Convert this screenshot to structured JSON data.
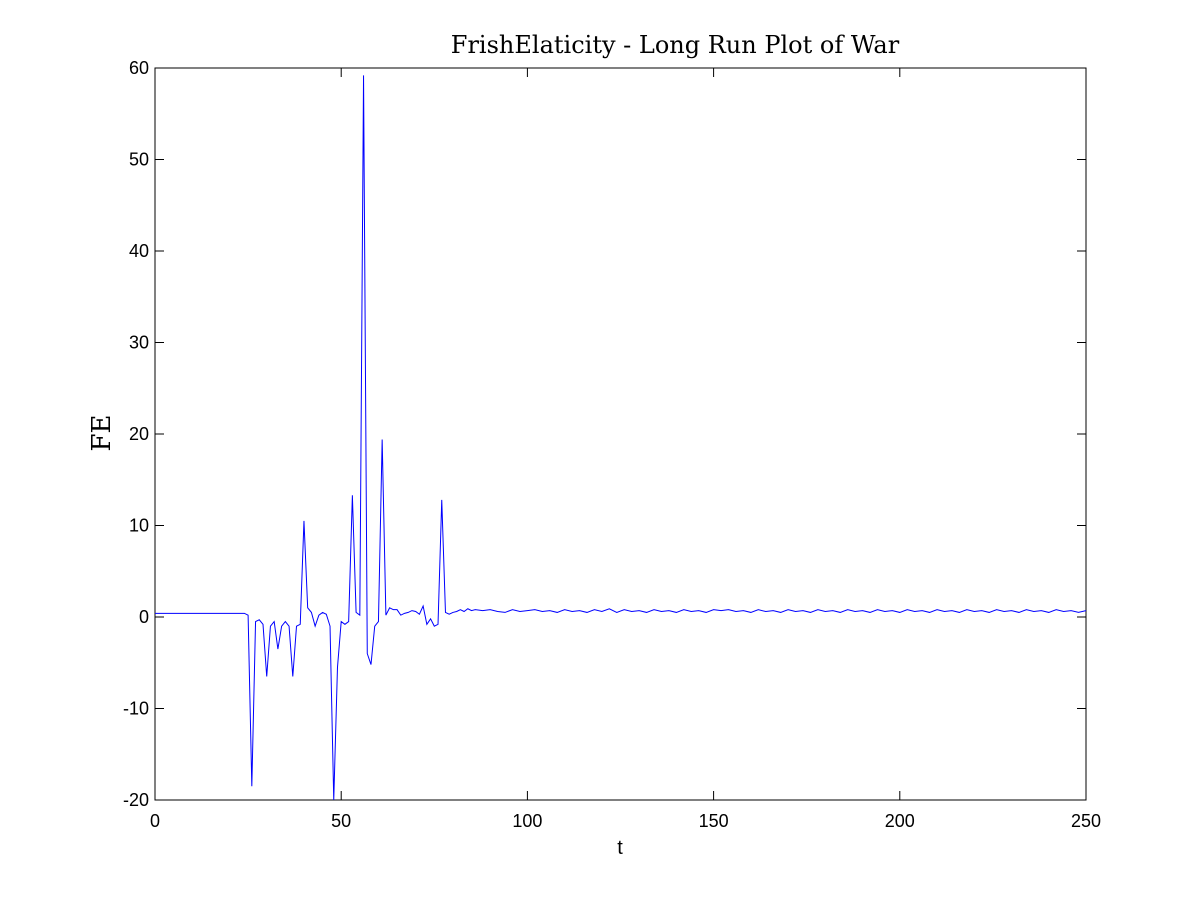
{
  "chart_data": {
    "type": "line",
    "title": "FrishElaticity - Long Run Plot of War",
    "xlabel": "t",
    "ylabel": "FE",
    "xlim": [
      0,
      250
    ],
    "ylim": [
      -20,
      60
    ],
    "xticks": [
      0,
      50,
      100,
      150,
      200,
      250
    ],
    "yticks": [
      -20,
      -10,
      0,
      10,
      20,
      30,
      40,
      50,
      60
    ],
    "grid": false,
    "series": [
      {
        "color": "#0000ff",
        "x": [
          0,
          24,
          25,
          26,
          27,
          28,
          29,
          30,
          31,
          32,
          33,
          34,
          35,
          36,
          37,
          38,
          39,
          40,
          41,
          42,
          43,
          44,
          45,
          46,
          47,
          48,
          49,
          50,
          51,
          52,
          53,
          54,
          55,
          56,
          57,
          58,
          59,
          60,
          61,
          62,
          63,
          64,
          65,
          66,
          67,
          68,
          69,
          70,
          71,
          72,
          73,
          74,
          75,
          76,
          77,
          78,
          79,
          80,
          81,
          82,
          83,
          84,
          85,
          86,
          88,
          90,
          92,
          94,
          96,
          98,
          100,
          102,
          104,
          106,
          108,
          110,
          112,
          114,
          116,
          118,
          120,
          122,
          124,
          126,
          128,
          130,
          132,
          134,
          136,
          138,
          140,
          142,
          144,
          146,
          148,
          150,
          152,
          154,
          156,
          158,
          160,
          162,
          164,
          166,
          168,
          170,
          172,
          174,
          176,
          178,
          180,
          182,
          184,
          186,
          188,
          190,
          192,
          194,
          196,
          198,
          200,
          202,
          204,
          206,
          208,
          210,
          212,
          214,
          216,
          218,
          220,
          222,
          224,
          226,
          228,
          230,
          232,
          234,
          236,
          238,
          240,
          242,
          244,
          246,
          248,
          250
        ],
        "y": [
          0.4,
          0.4,
          0.2,
          -18.5,
          -0.5,
          -0.3,
          -0.8,
          -6.5,
          -1.0,
          -0.5,
          -3.5,
          -1.0,
          -0.5,
          -1.0,
          -6.5,
          -1.0,
          -0.8,
          10.5,
          1.0,
          0.5,
          -1.0,
          0.2,
          0.5,
          0.3,
          -1.0,
          -20,
          -5.5,
          -0.5,
          -0.8,
          -0.5,
          13.3,
          0.5,
          0.2,
          59.2,
          -4.0,
          -5.2,
          -1.0,
          -0.5,
          19.4,
          0.2,
          1.0,
          0.8,
          0.8,
          0.2,
          0.4,
          0.5,
          0.7,
          0.6,
          0.3,
          1.2,
          -0.8,
          -0.2,
          -1.0,
          -0.8,
          12.8,
          0.5,
          0.3,
          0.5,
          0.6,
          0.8,
          0.6,
          0.9,
          0.7,
          0.8,
          0.7,
          0.8,
          0.6,
          0.5,
          0.8,
          0.6,
          0.7,
          0.8,
          0.6,
          0.7,
          0.5,
          0.8,
          0.6,
          0.7,
          0.5,
          0.8,
          0.6,
          0.9,
          0.5,
          0.8,
          0.6,
          0.7,
          0.5,
          0.8,
          0.6,
          0.7,
          0.5,
          0.8,
          0.6,
          0.7,
          0.5,
          0.8,
          0.7,
          0.8,
          0.6,
          0.7,
          0.5,
          0.8,
          0.6,
          0.7,
          0.5,
          0.8,
          0.6,
          0.7,
          0.5,
          0.8,
          0.6,
          0.7,
          0.5,
          0.8,
          0.6,
          0.7,
          0.5,
          0.8,
          0.6,
          0.7,
          0.5,
          0.8,
          0.6,
          0.7,
          0.5,
          0.8,
          0.6,
          0.7,
          0.5,
          0.8,
          0.6,
          0.7,
          0.5,
          0.8,
          0.6,
          0.7,
          0.5,
          0.8,
          0.6,
          0.7,
          0.5,
          0.8,
          0.6,
          0.7,
          0.5,
          0.7
        ]
      }
    ]
  }
}
